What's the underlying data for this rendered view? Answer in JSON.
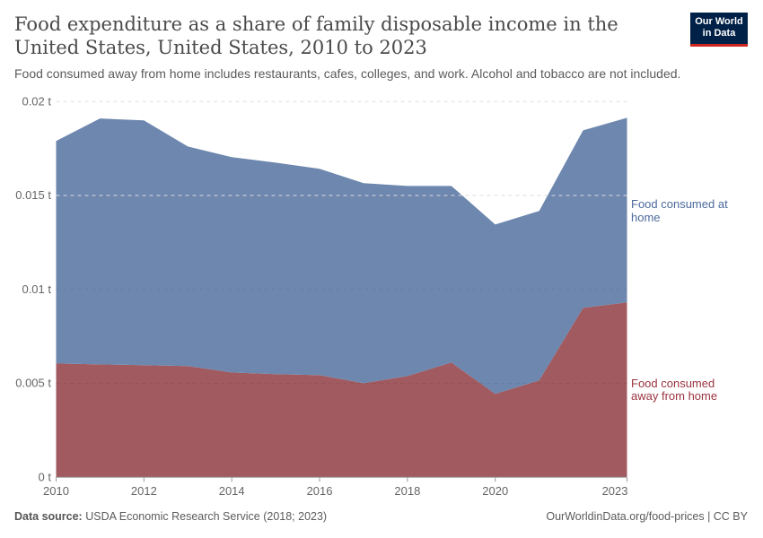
{
  "header": {
    "title": "Food expenditure as a share of family disposable income in the United States, United States, 2010 to 2023",
    "subtitle": "Food consumed away from home includes restaurants, cafes, colleges, and work. Alcohol and tobacco are not included.",
    "logo": "Our World in Data"
  },
  "footer": {
    "source_label": "Data source:",
    "source": "USDA Economic Research Service (2018; 2023)",
    "url": "OurWorldinData.org/food-prices | CC BY"
  },
  "chart_data": {
    "type": "area",
    "stacked": true,
    "x": [
      2010,
      2011,
      2012,
      2013,
      2014,
      2015,
      2016,
      2017,
      2018,
      2019,
      2020,
      2021,
      2022,
      2023
    ],
    "xlim": [
      2010,
      2023
    ],
    "x_ticks": [
      "2010",
      "2012",
      "2014",
      "2016",
      "2018",
      "2020",
      "2023"
    ],
    "ylim": [
      0,
      0.02
    ],
    "y_ticks": [
      "0 t",
      "0.005 t",
      "0.01 t",
      "0.015 t",
      "0.02 t"
    ],
    "grid": "horizontal dashed",
    "legend": "right, inline labels",
    "series": [
      {
        "name": "Food consumed away from home",
        "color": "#a05a60",
        "label_color": "#9a3340",
        "values": [
          0.00606,
          0.00601,
          0.00597,
          0.00592,
          0.00558,
          0.00549,
          0.00544,
          0.00501,
          0.00539,
          0.00611,
          0.00444,
          0.00516,
          0.00902,
          0.00931
        ]
      },
      {
        "name": "Food consumed at home",
        "color": "#6d87ae",
        "label_color": "#4c6a9c",
        "values": [
          0.01184,
          0.01309,
          0.01303,
          0.01169,
          0.01146,
          0.01126,
          0.01098,
          0.01065,
          0.01012,
          0.0094,
          0.00902,
          0.00902,
          0.00945,
          0.00983
        ]
      }
    ]
  }
}
